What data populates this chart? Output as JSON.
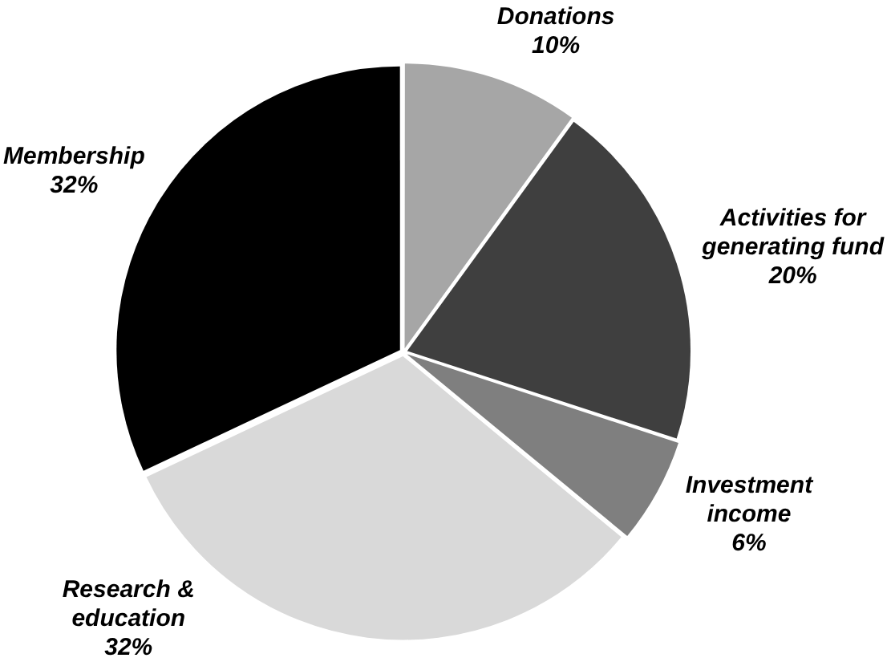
{
  "chart_data": {
    "type": "pie",
    "categories": [
      "Donations",
      "Activities for generating fund",
      "Investment income",
      "Research & education",
      "Membership"
    ],
    "values": [
      10,
      20,
      6,
      32,
      32
    ],
    "colors": [
      "#a6a6a6",
      "#3f3f3f",
      "#7f7f7f",
      "#d9d9d9",
      "#000000"
    ],
    "value_labels": [
      "10%",
      "20%",
      "6%",
      "32%",
      "32%"
    ],
    "legend": false
  }
}
